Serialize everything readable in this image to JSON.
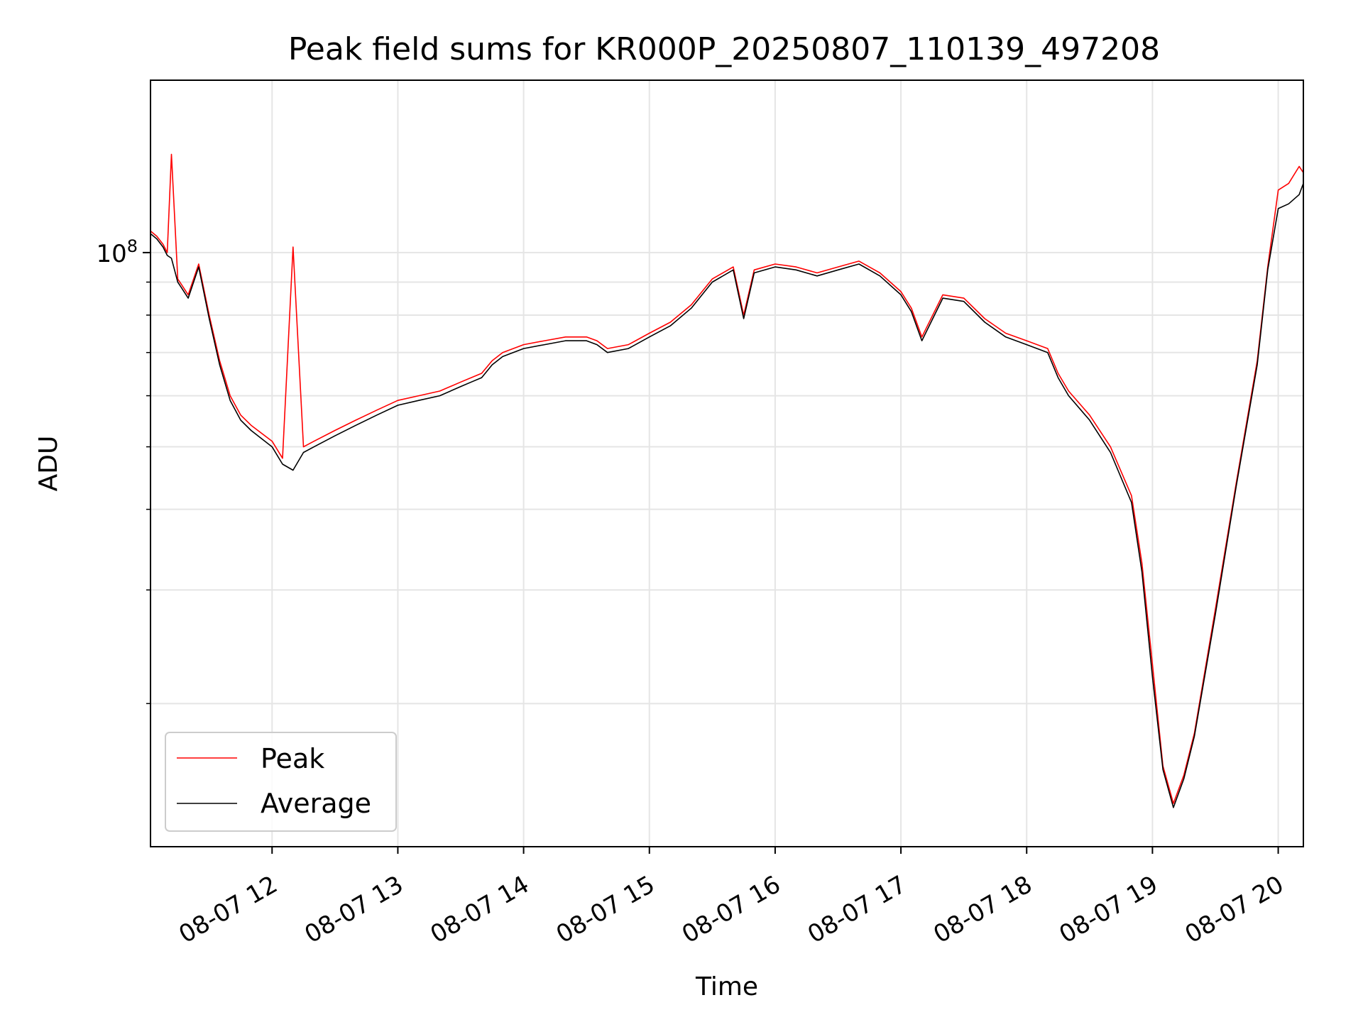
{
  "chart_data": {
    "type": "line",
    "title": "Peak field sums for KR000P_20250807_110139_497208",
    "xlabel": "Time",
    "ylabel": "ADU",
    "xlim": [
      "08-07 11:02",
      "08-07 20:12"
    ],
    "ylim": [
      12000000,
      185000000
    ],
    "yscale": "log",
    "y_major_ticks": [
      {
        "value": 100000000,
        "label_base": "10",
        "label_exp": "8"
      }
    ],
    "y_minor_ticks": [
      20000000,
      30000000,
      40000000,
      50000000,
      60000000,
      70000000,
      80000000,
      90000000
    ],
    "x_ticks": [
      {
        "value": "08-07 12:00",
        "label": "08-07 12"
      },
      {
        "value": "08-07 13:00",
        "label": "08-07 13"
      },
      {
        "value": "08-07 14:00",
        "label": "08-07 14"
      },
      {
        "value": "08-07 15:00",
        "label": "08-07 15"
      },
      {
        "value": "08-07 16:00",
        "label": "08-07 16"
      },
      {
        "value": "08-07 17:00",
        "label": "08-07 17"
      },
      {
        "value": "08-07 18:00",
        "label": "08-07 18"
      },
      {
        "value": "08-07 19:00",
        "label": "08-07 19"
      },
      {
        "value": "08-07 20:00",
        "label": "08-07 20"
      }
    ],
    "grid": true,
    "legend_position": "lower-left",
    "x": [
      "08-07 11:02",
      "08-07 11:05",
      "08-07 11:08",
      "08-07 11:10",
      "08-07 11:12",
      "08-07 11:15",
      "08-07 11:17",
      "08-07 11:20",
      "08-07 11:25",
      "08-07 11:30",
      "08-07 11:35",
      "08-07 11:40",
      "08-07 11:45",
      "08-07 11:50",
      "08-07 12:00",
      "08-07 12:05",
      "08-07 12:10",
      "08-07 12:15",
      "08-07 12:20",
      "08-07 12:30",
      "08-07 12:40",
      "08-07 12:50",
      "08-07 13:00",
      "08-07 13:10",
      "08-07 13:20",
      "08-07 13:30",
      "08-07 13:35",
      "08-07 13:40",
      "08-07 13:45",
      "08-07 13:50",
      "08-07 14:00",
      "08-07 14:10",
      "08-07 14:20",
      "08-07 14:30",
      "08-07 14:35",
      "08-07 14:40",
      "08-07 14:50",
      "08-07 15:00",
      "08-07 15:10",
      "08-07 15:20",
      "08-07 15:30",
      "08-07 15:40",
      "08-07 15:45",
      "08-07 15:50",
      "08-07 16:00",
      "08-07 16:10",
      "08-07 16:20",
      "08-07 16:30",
      "08-07 16:40",
      "08-07 16:50",
      "08-07 17:00",
      "08-07 17:05",
      "08-07 17:10",
      "08-07 17:20",
      "08-07 17:30",
      "08-07 17:40",
      "08-07 17:50",
      "08-07 18:00",
      "08-07 18:10",
      "08-07 18:15",
      "08-07 18:20",
      "08-07 18:30",
      "08-07 18:40",
      "08-07 18:50",
      "08-07 18:55",
      "08-07 19:00",
      "08-07 19:05",
      "08-07 19:10",
      "08-07 19:15",
      "08-07 19:20",
      "08-07 19:30",
      "08-07 19:40",
      "08-07 19:50",
      "08-07 19:55",
      "08-07 20:00",
      "08-07 20:05",
      "08-07 20:10",
      "08-07 20:12"
    ],
    "series": [
      {
        "name": "Peak",
        "color": "#ff0000",
        "values": [
          108000000,
          106000000,
          103000000,
          100000000,
          142000000,
          91000000,
          89000000,
          86000000,
          96000000,
          80000000,
          68000000,
          60000000,
          56000000,
          54000000,
          51000000,
          48000000,
          102000000,
          50000000,
          51000000,
          53000000,
          55000000,
          57000000,
          59000000,
          60000000,
          61000000,
          63000000,
          64000000,
          65000000,
          68000000,
          70000000,
          72000000,
          73000000,
          74000000,
          74000000,
          73000000,
          71000000,
          72000000,
          75000000,
          78000000,
          83000000,
          91000000,
          95000000,
          80000000,
          94000000,
          96000000,
          95000000,
          93000000,
          95000000,
          97000000,
          93000000,
          87000000,
          82000000,
          74000000,
          86000000,
          85000000,
          79000000,
          75000000,
          73000000,
          71000000,
          65000000,
          61000000,
          56000000,
          50000000,
          42000000,
          33000000,
          23000000,
          16000000,
          14000000,
          15500000,
          18000000,
          28000000,
          44000000,
          68000000,
          95000000,
          125000000,
          128000000,
          136000000,
          133000000
        ]
      },
      {
        "name": "Average",
        "color": "#000000",
        "values": [
          107000000,
          105000000,
          102000000,
          99000000,
          98000000,
          90000000,
          88000000,
          85000000,
          95000000,
          79000000,
          67000000,
          59000000,
          55000000,
          53000000,
          50000000,
          47000000,
          46000000,
          49000000,
          50000000,
          52000000,
          54000000,
          56000000,
          58000000,
          59000000,
          60000000,
          62000000,
          63000000,
          64000000,
          67000000,
          69000000,
          71000000,
          72000000,
          73000000,
          73000000,
          72000000,
          70000000,
          71000000,
          74000000,
          77000000,
          82000000,
          90000000,
          94000000,
          79000000,
          93000000,
          95000000,
          94000000,
          92000000,
          94000000,
          96000000,
          92000000,
          86000000,
          81000000,
          73000000,
          85000000,
          84000000,
          78000000,
          74000000,
          72000000,
          70000000,
          64000000,
          60000000,
          55000000,
          49000000,
          41000000,
          32000000,
          22000000,
          15800000,
          13800000,
          15300000,
          17800000,
          27500000,
          43500000,
          67000000,
          94000000,
          117000000,
          119000000,
          123000000,
          128000000
        ]
      }
    ]
  }
}
